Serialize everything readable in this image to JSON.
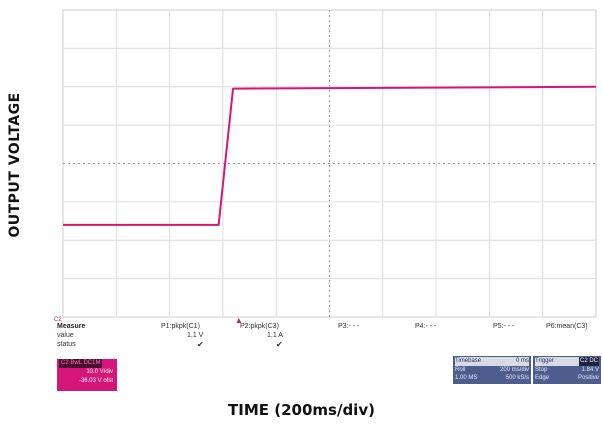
{
  "chart_data": {
    "type": "line",
    "xlabel": "TIME (200ms/div)",
    "ylabel": "OUTPUT  VOLTAGE",
    "grid": true,
    "x_divisions": 10,
    "y_divisions": 8,
    "series": [
      {
        "color": "#d6157a",
        "x_div": [
          0,
          2.92,
          3.19,
          10
        ],
        "y_div": [
          2.4,
          2.4,
          5.95,
          6.0
        ]
      }
    ],
    "channel_marker": "C2",
    "trigger_x_div": 3.3
  },
  "measurements": {
    "row_labels": [
      "Measure",
      "value",
      "status"
    ],
    "columns": [
      {
        "header": "P1:pkpk(C1)",
        "value": "1.1 V",
        "status": "✔"
      },
      {
        "header": "P2:pkpk(C3)",
        "value": "1.1 A",
        "status": "✔"
      },
      {
        "header": "P3:- - -",
        "value": "",
        "status": ""
      },
      {
        "header": "P4:- - -",
        "value": "",
        "status": ""
      },
      {
        "header": "P5:- - -",
        "value": "",
        "status": ""
      },
      {
        "header": "P6:mean(C3)",
        "value": "",
        "status": ""
      }
    ]
  },
  "channel_box": {
    "title": "C2 BwL DC1M",
    "line1": "10.0 V/div",
    "line2": "-36.03 V ofst"
  },
  "timebase_box": {
    "title": "Timebase",
    "title_value": "0 ms",
    "r1_l": "Roll",
    "r1_r": "200 ms/div",
    "r2_l": "1.00 MS",
    "r2_r": "500 kS/s"
  },
  "trigger_box": {
    "title": "Trigger",
    "title_value": "C2 DC",
    "r1_l": "Stop",
    "r1_r": "1.84 V",
    "r2_l": "Edge",
    "r2_r": "Positive"
  },
  "colors": {
    "trace": "#d6157a",
    "grid": "#d9d9d9",
    "info_box": "#4d5e8e"
  }
}
